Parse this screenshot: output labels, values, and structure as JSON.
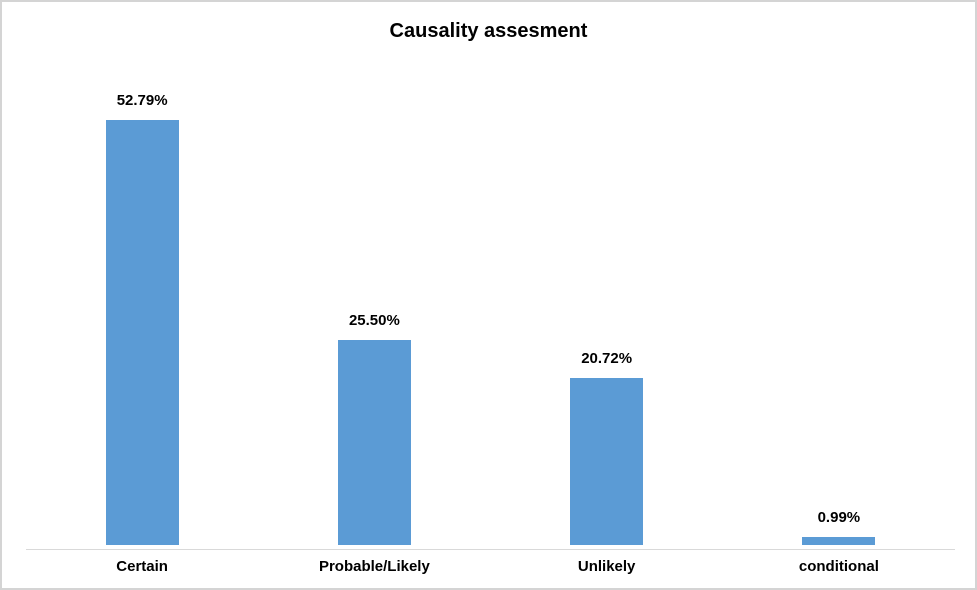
{
  "chart_title": "Causality assesment",
  "colors": {
    "bar_fill": "#5B9BD5",
    "axis_line": "#D9D9D9",
    "frame_border": "#D4D4D4",
    "text": "#000000"
  },
  "chart_data": {
    "type": "bar",
    "title": "Causality assesment",
    "categories": [
      "Certain",
      "Probable/Likely",
      "Unlikely",
      "conditional"
    ],
    "values": [
      52.79,
      25.5,
      20.72,
      0.99
    ],
    "data_labels": [
      "52.79%",
      "25.50%",
      "20.72%",
      "0.99%"
    ],
    "xlabel": "",
    "ylabel": "",
    "ylim": [
      0,
      60
    ],
    "grid": false,
    "legend": false,
    "data_labels_shown": true,
    "bar_color": "#5B9BD5"
  }
}
